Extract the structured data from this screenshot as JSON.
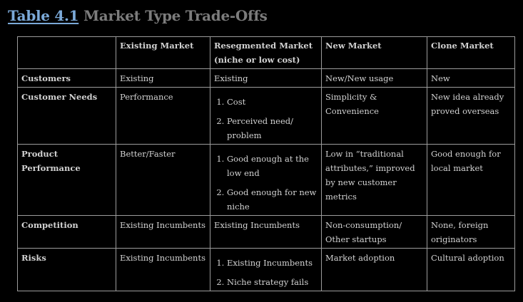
{
  "title": {
    "number": "Table 4.1",
    "text": "Market Type Trade-Offs"
  },
  "columns": [
    "",
    "Existing Market",
    "Resegmented Market (niche or low cost)",
    "New Market",
    "Clone Market"
  ],
  "rows": [
    {
      "label": "Customers",
      "existing": "Existing",
      "resegmented": [
        "Existing"
      ],
      "new": "New/New usage",
      "clone": "New"
    },
    {
      "label": "Customer Needs",
      "existing": "Performance",
      "resegmented": [
        "Cost",
        "Perceived need/ problem"
      ],
      "new": "Simplicity & Convenience",
      "clone": "New idea already proved overseas"
    },
    {
      "label": "Product Performance",
      "existing": "Better/Faster",
      "resegmented": [
        "Good enough at the low end",
        "Good enough for new niche"
      ],
      "new": "Low in “traditional attributes,” improved by new customer metrics",
      "clone": "Good enough for local market"
    },
    {
      "label": "Competition",
      "existing": "Existing Incumbents",
      "resegmented": [
        "Existing Incumbents"
      ],
      "new": "Non-consumption/ Other startups",
      "clone": "None, foreign originators"
    },
    {
      "label": "Risks",
      "existing": "Existing Incumbents",
      "resegmented": [
        "Existing Incumbents",
        "Niche strategy fails"
      ],
      "new": "Market adoption",
      "clone": "Cultural adoption"
    }
  ]
}
